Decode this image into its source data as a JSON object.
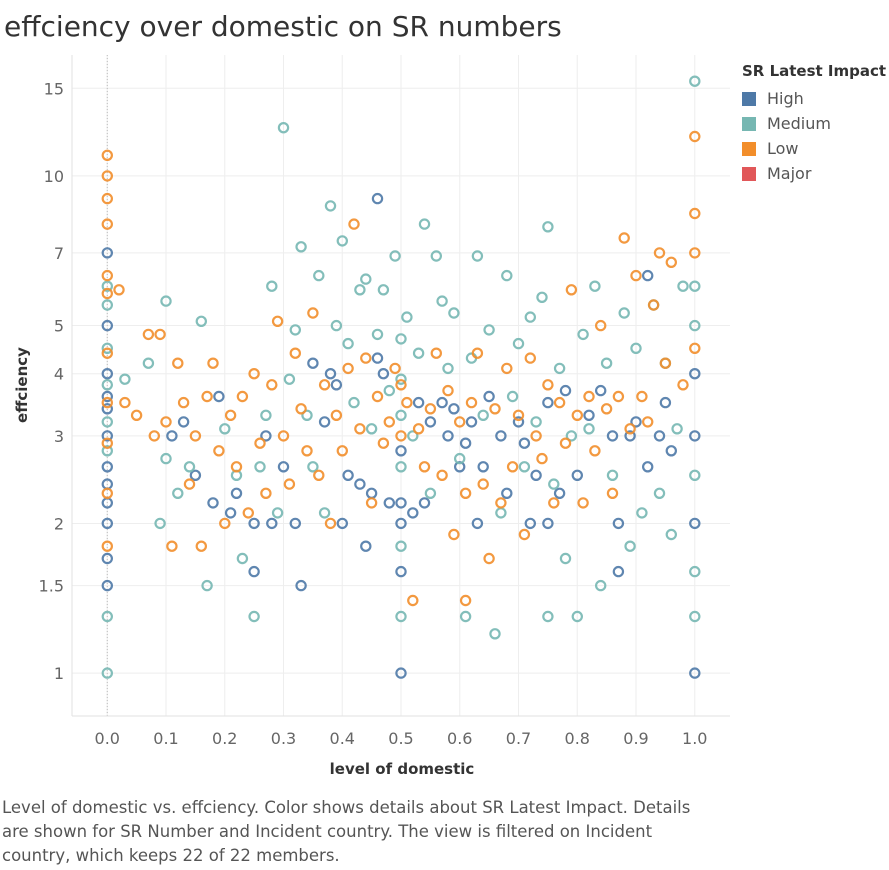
{
  "title": "effciency over domestic on SR numbers",
  "legend": {
    "title": "SR Latest Impact",
    "items": [
      {
        "label": "High",
        "color": "#4e79a7"
      },
      {
        "label": "Medium",
        "color": "#76b7b2"
      },
      {
        "label": "Low",
        "color": "#f28e2b"
      },
      {
        "label": "Major",
        "color": "#e15759"
      }
    ]
  },
  "caption": "Level of domestic vs. effciency.  Color shows details about SR Latest Impact.  Details are shown for SR Number and Incident country. The view is filtered on Incident country, which keeps 22 of 22 members.",
  "chart_data": {
    "type": "scatter",
    "xlabel": "level of domestic",
    "ylabel": "effciency",
    "xlim": [
      -0.06,
      1.06
    ],
    "ylim": [
      0.82,
      17.5
    ],
    "y_scale": "log",
    "x_ticks": [
      "0.0",
      "0.1",
      "0.2",
      "0.3",
      "0.4",
      "0.5",
      "0.6",
      "0.7",
      "0.8",
      "0.9",
      "1.0"
    ],
    "x_tick_values": [
      0,
      0.1,
      0.2,
      0.3,
      0.4,
      0.5,
      0.6,
      0.7,
      0.8,
      0.9,
      1.0
    ],
    "y_ticks": [
      "1",
      "1.5",
      "2",
      "3",
      "4",
      "5",
      "7",
      "10",
      "15"
    ],
    "y_tick_values": [
      1,
      1.5,
      2,
      3,
      4,
      5,
      7,
      10,
      15
    ],
    "grid": true,
    "legend_position": "top-right",
    "series": [
      {
        "name": "High",
        "color": "#4e79a7",
        "points": [
          [
            0,
            7
          ],
          [
            0,
            5
          ],
          [
            0,
            4
          ],
          [
            0,
            3.6
          ],
          [
            0,
            3.4
          ],
          [
            0,
            3
          ],
          [
            0,
            2.6
          ],
          [
            0,
            2.4
          ],
          [
            0,
            2.2
          ],
          [
            0,
            2
          ],
          [
            0,
            1.7
          ],
          [
            0,
            1.5
          ],
          [
            0.11,
            3
          ],
          [
            0.13,
            3.2
          ],
          [
            0.15,
            2.5
          ],
          [
            0.18,
            2.2
          ],
          [
            0.19,
            3.6
          ],
          [
            0.21,
            2.1
          ],
          [
            0.22,
            2.3
          ],
          [
            0.25,
            2
          ],
          [
            0.25,
            1.6
          ],
          [
            0.27,
            3
          ],
          [
            0.28,
            2
          ],
          [
            0.3,
            2.6
          ],
          [
            0.32,
            2
          ],
          [
            0.33,
            1.5
          ],
          [
            0.35,
            4.2
          ],
          [
            0.37,
            3.2
          ],
          [
            0.38,
            4
          ],
          [
            0.39,
            3.8
          ],
          [
            0.4,
            2
          ],
          [
            0.41,
            2.5
          ],
          [
            0.43,
            2.4
          ],
          [
            0.44,
            1.8
          ],
          [
            0.45,
            2.3
          ],
          [
            0.46,
            4.3
          ],
          [
            0.46,
            9
          ],
          [
            0.47,
            4
          ],
          [
            0.48,
            2.2
          ],
          [
            0.5,
            2.8
          ],
          [
            0.5,
            2.2
          ],
          [
            0.5,
            2
          ],
          [
            0.5,
            1.6
          ],
          [
            0.5,
            1
          ],
          [
            0.52,
            2.1
          ],
          [
            0.53,
            3.5
          ],
          [
            0.54,
            2.2
          ],
          [
            0.55,
            3.2
          ],
          [
            0.57,
            3.5
          ],
          [
            0.58,
            3
          ],
          [
            0.59,
            3.4
          ],
          [
            0.6,
            2.6
          ],
          [
            0.61,
            2.9
          ],
          [
            0.62,
            3.2
          ],
          [
            0.63,
            2
          ],
          [
            0.64,
            2.6
          ],
          [
            0.65,
            3.6
          ],
          [
            0.67,
            3
          ],
          [
            0.68,
            2.3
          ],
          [
            0.7,
            3.2
          ],
          [
            0.71,
            2.9
          ],
          [
            0.72,
            2
          ],
          [
            0.73,
            2.5
          ],
          [
            0.75,
            3.5
          ],
          [
            0.75,
            2
          ],
          [
            0.77,
            2.3
          ],
          [
            0.78,
            3.7
          ],
          [
            0.8,
            2.5
          ],
          [
            0.82,
            3.3
          ],
          [
            0.84,
            3.7
          ],
          [
            0.86,
            3
          ],
          [
            0.87,
            2
          ],
          [
            0.87,
            1.6
          ],
          [
            0.89,
            3
          ],
          [
            0.9,
            3.2
          ],
          [
            0.92,
            2.6
          ],
          [
            0.92,
            6.3
          ],
          [
            0.94,
            3
          ],
          [
            0.95,
            3.5
          ],
          [
            0.96,
            2.8
          ],
          [
            1,
            4
          ],
          [
            1,
            3
          ],
          [
            1,
            2
          ],
          [
            1,
            1
          ]
        ]
      },
      {
        "name": "Medium",
        "color": "#76b7b2",
        "points": [
          [
            0,
            6
          ],
          [
            0,
            5.5
          ],
          [
            0,
            4.5
          ],
          [
            0,
            3.8
          ],
          [
            0,
            3.2
          ],
          [
            0,
            2.8
          ],
          [
            0,
            1.3
          ],
          [
            0,
            1
          ],
          [
            0.03,
            3.9
          ],
          [
            0.07,
            4.2
          ],
          [
            0.09,
            2
          ],
          [
            0.1,
            5.6
          ],
          [
            0.1,
            2.7
          ],
          [
            0.12,
            2.3
          ],
          [
            0.14,
            2.6
          ],
          [
            0.16,
            5.1
          ],
          [
            0.17,
            1.5
          ],
          [
            0.2,
            3.1
          ],
          [
            0.22,
            2.5
          ],
          [
            0.23,
            1.7
          ],
          [
            0.25,
            1.3
          ],
          [
            0.26,
            2.6
          ],
          [
            0.27,
            3.3
          ],
          [
            0.28,
            6
          ],
          [
            0.29,
            2.1
          ],
          [
            0.3,
            12.5
          ],
          [
            0.31,
            3.9
          ],
          [
            0.32,
            4.9
          ],
          [
            0.33,
            7.2
          ],
          [
            0.34,
            3.3
          ],
          [
            0.35,
            2.6
          ],
          [
            0.36,
            6.3
          ],
          [
            0.37,
            2.1
          ],
          [
            0.38,
            8.7
          ],
          [
            0.39,
            5
          ],
          [
            0.4,
            7.4
          ],
          [
            0.41,
            4.6
          ],
          [
            0.42,
            3.5
          ],
          [
            0.43,
            5.9
          ],
          [
            0.44,
            6.2
          ],
          [
            0.45,
            3.1
          ],
          [
            0.46,
            4.8
          ],
          [
            0.47,
            5.9
          ],
          [
            0.48,
            3.7
          ],
          [
            0.49,
            6.9
          ],
          [
            0.5,
            4.7
          ],
          [
            0.5,
            3.9
          ],
          [
            0.5,
            3.3
          ],
          [
            0.5,
            2.6
          ],
          [
            0.5,
            1.8
          ],
          [
            0.5,
            1.3
          ],
          [
            0.51,
            5.2
          ],
          [
            0.52,
            3
          ],
          [
            0.53,
            4.4
          ],
          [
            0.54,
            8
          ],
          [
            0.55,
            2.3
          ],
          [
            0.56,
            6.9
          ],
          [
            0.57,
            5.6
          ],
          [
            0.58,
            4.1
          ],
          [
            0.59,
            5.3
          ],
          [
            0.6,
            2.7
          ],
          [
            0.61,
            1.3
          ],
          [
            0.62,
            4.3
          ],
          [
            0.63,
            6.9
          ],
          [
            0.64,
            3.3
          ],
          [
            0.65,
            4.9
          ],
          [
            0.66,
            1.2
          ],
          [
            0.67,
            2.1
          ],
          [
            0.68,
            6.3
          ],
          [
            0.69,
            3.6
          ],
          [
            0.7,
            4.6
          ],
          [
            0.71,
            2.6
          ],
          [
            0.72,
            5.2
          ],
          [
            0.73,
            3.2
          ],
          [
            0.74,
            5.7
          ],
          [
            0.75,
            7.9
          ],
          [
            0.75,
            1.3
          ],
          [
            0.76,
            2.4
          ],
          [
            0.77,
            4.1
          ],
          [
            0.78,
            1.7
          ],
          [
            0.79,
            3
          ],
          [
            0.8,
            1.3
          ],
          [
            0.81,
            4.8
          ],
          [
            0.82,
            3.1
          ],
          [
            0.83,
            6
          ],
          [
            0.84,
            1.5
          ],
          [
            0.85,
            4.2
          ],
          [
            0.86,
            2.5
          ],
          [
            0.88,
            5.3
          ],
          [
            0.89,
            1.8
          ],
          [
            0.9,
            4.5
          ],
          [
            0.91,
            2.1
          ],
          [
            0.93,
            5.5
          ],
          [
            0.94,
            2.3
          ],
          [
            0.95,
            4.2
          ],
          [
            0.96,
            1.9
          ],
          [
            0.97,
            3.1
          ],
          [
            0.98,
            6
          ],
          [
            1,
            15.5
          ],
          [
            1,
            6
          ],
          [
            1,
            5
          ],
          [
            1,
            2.5
          ],
          [
            1,
            1.6
          ],
          [
            1,
            1.3
          ]
        ]
      },
      {
        "name": "Low",
        "color": "#f28e2b",
        "points": [
          [
            0,
            11
          ],
          [
            0,
            10
          ],
          [
            0,
            9
          ],
          [
            0,
            8
          ],
          [
            0,
            6.3
          ],
          [
            0,
            5.8
          ],
          [
            0,
            4.4
          ],
          [
            0,
            3.5
          ],
          [
            0,
            2.9
          ],
          [
            0,
            2.3
          ],
          [
            0,
            1.8
          ],
          [
            0.02,
            5.9
          ],
          [
            0.03,
            3.5
          ],
          [
            0.05,
            3.3
          ],
          [
            0.07,
            4.8
          ],
          [
            0.08,
            3
          ],
          [
            0.09,
            4.8
          ],
          [
            0.1,
            3.2
          ],
          [
            0.11,
            1.8
          ],
          [
            0.12,
            4.2
          ],
          [
            0.13,
            3.5
          ],
          [
            0.14,
            2.4
          ],
          [
            0.15,
            3
          ],
          [
            0.16,
            1.8
          ],
          [
            0.17,
            3.6
          ],
          [
            0.18,
            4.2
          ],
          [
            0.19,
            2.8
          ],
          [
            0.2,
            2
          ],
          [
            0.21,
            3.3
          ],
          [
            0.22,
            2.6
          ],
          [
            0.23,
            3.6
          ],
          [
            0.24,
            2.1
          ],
          [
            0.25,
            4
          ],
          [
            0.26,
            2.9
          ],
          [
            0.27,
            2.3
          ],
          [
            0.28,
            3.8
          ],
          [
            0.29,
            5.1
          ],
          [
            0.3,
            3
          ],
          [
            0.31,
            2.4
          ],
          [
            0.32,
            4.4
          ],
          [
            0.33,
            3.4
          ],
          [
            0.34,
            2.8
          ],
          [
            0.35,
            5.3
          ],
          [
            0.36,
            2.5
          ],
          [
            0.37,
            3.8
          ],
          [
            0.38,
            2
          ],
          [
            0.39,
            3.3
          ],
          [
            0.4,
            2.8
          ],
          [
            0.41,
            4.1
          ],
          [
            0.42,
            8
          ],
          [
            0.43,
            3.1
          ],
          [
            0.44,
            4.3
          ],
          [
            0.45,
            2.2
          ],
          [
            0.46,
            3.6
          ],
          [
            0.47,
            2.9
          ],
          [
            0.48,
            3.2
          ],
          [
            0.49,
            4.1
          ],
          [
            0.5,
            3.8
          ],
          [
            0.5,
            3
          ],
          [
            0.51,
            3.5
          ],
          [
            0.52,
            1.4
          ],
          [
            0.53,
            3.1
          ],
          [
            0.54,
            2.6
          ],
          [
            0.55,
            3.4
          ],
          [
            0.56,
            4.4
          ],
          [
            0.57,
            2.5
          ],
          [
            0.58,
            3.7
          ],
          [
            0.59,
            1.9
          ],
          [
            0.6,
            3.2
          ],
          [
            0.61,
            2.3
          ],
          [
            0.61,
            1.4
          ],
          [
            0.62,
            3.5
          ],
          [
            0.63,
            4.4
          ],
          [
            0.64,
            2.4
          ],
          [
            0.65,
            1.7
          ],
          [
            0.66,
            3.4
          ],
          [
            0.67,
            2.2
          ],
          [
            0.68,
            4.1
          ],
          [
            0.69,
            2.6
          ],
          [
            0.7,
            3.3
          ],
          [
            0.71,
            1.9
          ],
          [
            0.72,
            4.3
          ],
          [
            0.73,
            3
          ],
          [
            0.74,
            2.7
          ],
          [
            0.75,
            3.8
          ],
          [
            0.76,
            2.2
          ],
          [
            0.77,
            3.5
          ],
          [
            0.78,
            2.9
          ],
          [
            0.79,
            5.9
          ],
          [
            0.8,
            3.3
          ],
          [
            0.81,
            2.2
          ],
          [
            0.82,
            3.6
          ],
          [
            0.83,
            2.8
          ],
          [
            0.84,
            5
          ],
          [
            0.85,
            3.4
          ],
          [
            0.86,
            2.3
          ],
          [
            0.87,
            3.6
          ],
          [
            0.88,
            7.5
          ],
          [
            0.89,
            3.1
          ],
          [
            0.9,
            6.3
          ],
          [
            0.91,
            3.6
          ],
          [
            0.92,
            3.2
          ],
          [
            0.93,
            5.5
          ],
          [
            0.94,
            7
          ],
          [
            0.95,
            4.2
          ],
          [
            0.96,
            6.7
          ],
          [
            0.98,
            3.8
          ],
          [
            1,
            12
          ],
          [
            1,
            8.4
          ],
          [
            1,
            7
          ],
          [
            1,
            4.5
          ]
        ]
      },
      {
        "name": "Major",
        "color": "#e15759",
        "points": []
      }
    ]
  }
}
